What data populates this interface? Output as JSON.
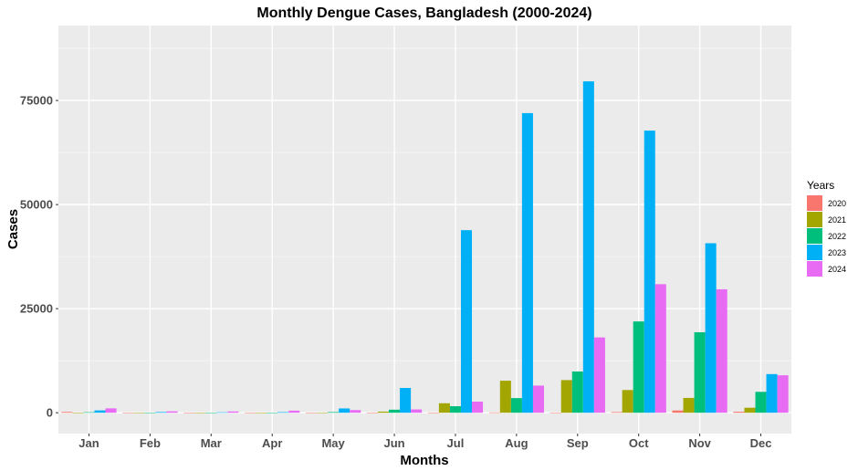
{
  "chart_data": {
    "type": "bar",
    "title": "Monthly Dengue Cases, Bangladesh (2000-2024)",
    "xlabel": "Months",
    "ylabel": "Cases",
    "categories": [
      "Jan",
      "Feb",
      "Mar",
      "Apr",
      "May",
      "Jun",
      "Jul",
      "Aug",
      "Sep",
      "Oct",
      "Nov",
      "Dec"
    ],
    "ylim": [
      -5000,
      93000
    ],
    "yticks": [
      0,
      25000,
      50000,
      75000
    ],
    "ytick_labels": [
      "0",
      "25000",
      "50000",
      "75000"
    ],
    "grid": true,
    "legend_title": "Years",
    "legend_position": "right",
    "series": [
      {
        "name": "2020",
        "color": "#F8766D",
        "values": [
          199,
          45,
          27,
          25,
          0,
          20,
          23,
          68,
          47,
          163,
          545,
          241
        ]
      },
      {
        "name": "2021",
        "color": "#A3A500",
        "values": [
          32,
          9,
          13,
          3,
          43,
          272,
          2286,
          7698,
          7841,
          5458,
          3567,
          1207
        ]
      },
      {
        "name": "2022",
        "color": "#00BF7D",
        "values": [
          126,
          20,
          20,
          23,
          163,
          737,
          1571,
          3521,
          9911,
          21932,
          19334,
          5024
        ]
      },
      {
        "name": "2023",
        "color": "#00B0F6",
        "values": [
          566,
          166,
          111,
          143,
          1036,
          5956,
          43854,
          71976,
          79598,
          67769,
          40716,
          9288
        ]
      },
      {
        "name": "2024",
        "color": "#E76BF3",
        "values": [
          1055,
          339,
          311,
          504,
          644,
          798,
          2669,
          6521,
          18097,
          30879,
          29652,
          9000
        ]
      }
    ]
  }
}
